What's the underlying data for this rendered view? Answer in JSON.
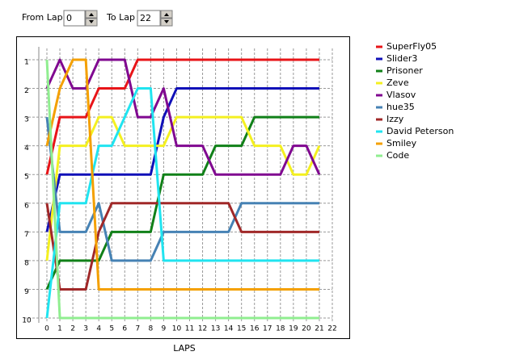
{
  "controls": {
    "from_label": "From Lap",
    "from_value": "0",
    "to_label": "To Lap",
    "to_value": "22"
  },
  "chart_data": {
    "type": "line",
    "x_label": "LAPS",
    "x": [
      0,
      1,
      2,
      3,
      4,
      5,
      6,
      7,
      8,
      9,
      10,
      11,
      12,
      13,
      14,
      15,
      16,
      17,
      18,
      19,
      20,
      21
    ],
    "xlim": [
      0,
      22
    ],
    "xticks": [
      0,
      1,
      2,
      3,
      4,
      5,
      6,
      7,
      8,
      9,
      10,
      11,
      12,
      13,
      14,
      15,
      16,
      17,
      18,
      19,
      20,
      21,
      22
    ],
    "ylim": [
      1,
      10
    ],
    "yticks": [
      1,
      2,
      3,
      4,
      5,
      6,
      7,
      8,
      9,
      10
    ],
    "y_inverted": true,
    "grid": true,
    "series": [
      {
        "name": "SuperFly05",
        "color": "#e81418",
        "values": [
          5,
          3,
          3,
          3,
          2,
          2,
          2,
          1,
          1,
          1,
          1,
          1,
          1,
          1,
          1,
          1,
          1,
          1,
          1,
          1,
          1,
          1
        ]
      },
      {
        "name": "Slider3",
        "color": "#1010b8",
        "values": [
          7,
          5,
          5,
          5,
          5,
          5,
          5,
          5,
          5,
          3,
          2,
          2,
          2,
          2,
          2,
          2,
          2,
          2,
          2,
          2,
          2,
          2
        ]
      },
      {
        "name": "Prisoner",
        "color": "#108018",
        "values": [
          9,
          8,
          8,
          8,
          8,
          7,
          7,
          7,
          7,
          5,
          5,
          5,
          5,
          4,
          4,
          4,
          3,
          3,
          3,
          3,
          3,
          3
        ]
      },
      {
        "name": "Zeve",
        "color": "#f4f020",
        "values": [
          8,
          4,
          4,
          4,
          3,
          3,
          4,
          4,
          4,
          4,
          3,
          3,
          3,
          3,
          3,
          3,
          4,
          4,
          4,
          5,
          5,
          4
        ]
      },
      {
        "name": "Vlasov",
        "color": "#800890",
        "values": [
          2,
          1,
          2,
          2,
          1,
          1,
          1,
          3,
          3,
          2,
          4,
          4,
          4,
          5,
          5,
          5,
          5,
          5,
          5,
          4,
          4,
          5
        ]
      },
      {
        "name": "hue35",
        "color": "#4682b4",
        "values": [
          3,
          7,
          7,
          7,
          6,
          8,
          8,
          8,
          8,
          7,
          7,
          7,
          7,
          7,
          7,
          6,
          6,
          6,
          6,
          6,
          6,
          6
        ]
      },
      {
        "name": "Izzy",
        "color": "#a02828",
        "values": [
          6,
          9,
          9,
          9,
          7,
          6,
          6,
          6,
          6,
          6,
          6,
          6,
          6,
          6,
          6,
          7,
          7,
          7,
          7,
          7,
          7,
          7
        ]
      },
      {
        "name": "David Peterson",
        "color": "#20e4f0",
        "values": [
          10,
          6,
          6,
          6,
          4,
          4,
          3,
          2,
          2,
          8,
          8,
          8,
          8,
          8,
          8,
          8,
          8,
          8,
          8,
          8,
          8,
          8
        ]
      },
      {
        "name": "Smiley",
        "color": "#f4a000",
        "values": [
          4,
          2,
          1,
          1,
          9,
          9,
          9,
          9,
          9,
          9,
          9,
          9,
          9,
          9,
          9,
          9,
          9,
          9,
          9,
          9,
          9,
          9
        ]
      },
      {
        "name": "Code",
        "color": "#90ee90",
        "values": [
          1,
          10,
          10,
          10,
          10,
          10,
          10,
          10,
          10,
          10,
          10,
          10,
          10,
          10,
          10,
          10,
          10,
          10,
          10,
          10,
          10,
          10
        ]
      }
    ]
  }
}
